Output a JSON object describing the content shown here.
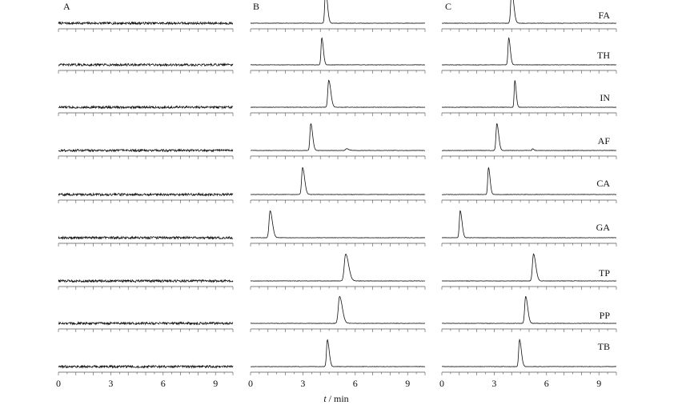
{
  "figure": {
    "xlabel_italic": "t",
    "xlabel_rest": " / min"
  },
  "chart_data": {
    "type": "line",
    "description_note": "",
    "x_ticks": [
      "0",
      "3",
      "6",
      "9"
    ],
    "xlim": [
      0,
      10
    ],
    "rows": [
      "FA",
      "TH",
      "IN",
      "AF",
      "CA",
      "GA",
      "TP",
      "PP",
      "TB"
    ],
    "panels": [
      {
        "label": "A",
        "traces": [
          {
            "row": "FA",
            "peaks": []
          },
          {
            "row": "TH",
            "peaks": []
          },
          {
            "row": "IN",
            "peaks": []
          },
          {
            "row": "AF",
            "peaks": []
          },
          {
            "row": "CA",
            "peaks": []
          },
          {
            "row": "GA",
            "peaks": []
          },
          {
            "row": "TP",
            "peaks": []
          },
          {
            "row": "PP",
            "peaks": []
          },
          {
            "row": "TB",
            "peaks": []
          }
        ]
      },
      {
        "label": "B",
        "traces": [
          {
            "row": "FA",
            "peaks": [
              {
                "t": 4.3,
                "h": 1.0,
                "w": 0.08
              }
            ]
          },
          {
            "row": "TH",
            "peaks": [
              {
                "t": 4.08,
                "h": 0.8,
                "w": 0.07
              }
            ]
          },
          {
            "row": "IN",
            "peaks": [
              {
                "t": 4.48,
                "h": 0.8,
                "w": 0.09
              }
            ]
          },
          {
            "row": "AF",
            "peaks": [
              {
                "t": 3.45,
                "h": 0.8,
                "w": 0.08
              },
              {
                "t": 5.5,
                "h": 0.05,
                "w": 0.1
              }
            ]
          },
          {
            "row": "CA",
            "peaks": [
              {
                "t": 2.98,
                "h": 0.8,
                "w": 0.09
              }
            ]
          },
          {
            "row": "GA",
            "peaks": [
              {
                "t": 1.12,
                "h": 0.8,
                "w": 0.1
              }
            ]
          },
          {
            "row": "TP",
            "peaks": [
              {
                "t": 5.45,
                "h": 0.8,
                "w": 0.13
              }
            ]
          },
          {
            "row": "PP",
            "peaks": [
              {
                "t": 5.1,
                "h": 0.8,
                "w": 0.12
              }
            ]
          },
          {
            "row": "TB",
            "peaks": [
              {
                "t": 4.4,
                "h": 0.8,
                "w": 0.08
              }
            ]
          }
        ]
      },
      {
        "label": "C",
        "traces": [
          {
            "row": "FA",
            "peaks": [
              {
                "t": 4.0,
                "h": 1.0,
                "w": 0.09
              }
            ]
          },
          {
            "row": "TH",
            "peaks": [
              {
                "t": 3.83,
                "h": 0.8,
                "w": 0.07
              }
            ]
          },
          {
            "row": "IN",
            "peaks": [
              {
                "t": 4.18,
                "h": 0.8,
                "w": 0.06
              }
            ]
          },
          {
            "row": "AF",
            "peaks": [
              {
                "t": 3.15,
                "h": 0.8,
                "w": 0.08
              },
              {
                "t": 5.2,
                "h": 0.05,
                "w": 0.05
              }
            ]
          },
          {
            "row": "CA",
            "peaks": [
              {
                "t": 2.67,
                "h": 0.8,
                "w": 0.07
              }
            ]
          },
          {
            "row": "GA",
            "peaks": [
              {
                "t": 1.05,
                "h": 0.8,
                "w": 0.08
              }
            ]
          },
          {
            "row": "TP",
            "peaks": [
              {
                "t": 5.25,
                "h": 0.8,
                "w": 0.1
              }
            ]
          },
          {
            "row": "PP",
            "peaks": [
              {
                "t": 4.8,
                "h": 0.8,
                "w": 0.09
              }
            ]
          },
          {
            "row": "TB",
            "peaks": [
              {
                "t": 4.45,
                "h": 0.8,
                "w": 0.08
              }
            ]
          }
        ]
      }
    ]
  }
}
